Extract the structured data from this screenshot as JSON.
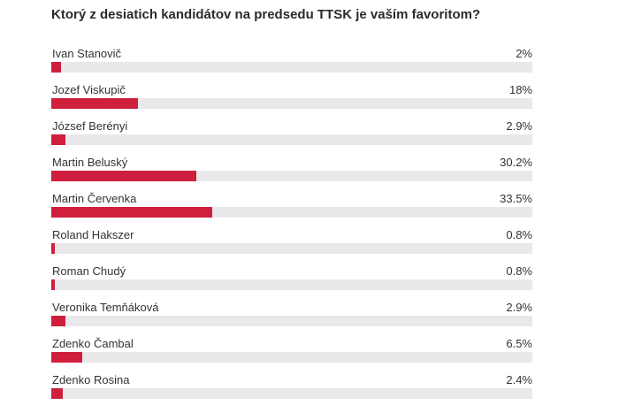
{
  "poll": {
    "question": "Ktorý z desiatich kandidátov na predsedu TTSK je vaším favoritom?",
    "bar_color": "#cf1f3c",
    "track_color": "#e9e9ec",
    "options": [
      {
        "name": "Ivan Stanovič",
        "percent_label": "2%",
        "value": 2
      },
      {
        "name": "Jozef Viskupič",
        "percent_label": "18%",
        "value": 18
      },
      {
        "name": "József Berényi",
        "percent_label": "2.9%",
        "value": 2.9
      },
      {
        "name": "Martin Beluský",
        "percent_label": "30.2%",
        "value": 30.2
      },
      {
        "name": "Martin Červenka",
        "percent_label": "33.5%",
        "value": 33.5
      },
      {
        "name": "Roland Hakszer",
        "percent_label": "0.8%",
        "value": 0.8
      },
      {
        "name": "Roman Chudý",
        "percent_label": "0.8%",
        "value": 0.8
      },
      {
        "name": "Veronika Temňáková",
        "percent_label": "2.9%",
        "value": 2.9
      },
      {
        "name": "Zdenko Čambal",
        "percent_label": "6.5%",
        "value": 6.5
      },
      {
        "name": "Zdenko Rosina",
        "percent_label": "2.4%",
        "value": 2.4
      }
    ]
  }
}
